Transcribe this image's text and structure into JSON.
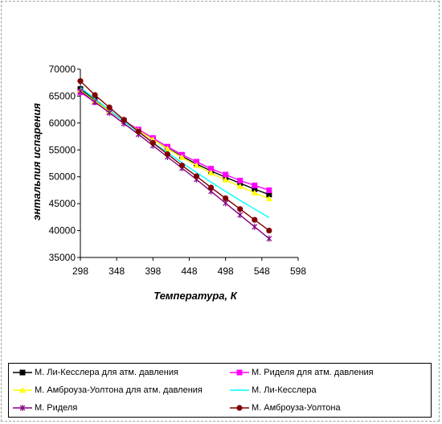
{
  "chart_data": {
    "type": "line",
    "xlabel": "Температура,  К",
    "ylabel": "энтальпия испарения",
    "xlim": [
      298,
      598
    ],
    "ylim": [
      35000,
      70000
    ],
    "x_ticks": [
      "298",
      "348",
      "398",
      "448",
      "498",
      "548",
      "598"
    ],
    "y_ticks": [
      "35000",
      "40000",
      "45000",
      "50000",
      "55000",
      "60000",
      "65000",
      "70000"
    ],
    "grid": false,
    "legend_position": "bottom",
    "series": [
      {
        "name": "М. Ли-Кесслера для атм. давления",
        "color": "#000000",
        "marker": "square",
        "x": [
          298,
          318,
          338,
          358,
          378,
          398,
          418,
          438,
          458,
          478,
          498,
          518,
          538,
          558
        ],
        "y": [
          66300,
          64300,
          62300,
          60400,
          58600,
          56900,
          55300,
          53800,
          52400,
          51100,
          49900,
          48800,
          47700,
          46700
        ]
      },
      {
        "name": "М. Риделя для атм. давления",
        "color": "#ff00ff",
        "marker": "square",
        "x": [
          298,
          318,
          338,
          358,
          378,
          398,
          418,
          438,
          458,
          478,
          498,
          518,
          538,
          558
        ],
        "y": [
          65700,
          63900,
          62100,
          60400,
          58800,
          57200,
          55600,
          54100,
          52800,
          51500,
          50400,
          49300,
          48400,
          47500
        ]
      },
      {
        "name": "М. Амброуза-Уолтона для атм. давления",
        "color": "#ffff00",
        "marker": "triangle",
        "x": [
          298,
          318,
          338,
          358,
          378,
          398,
          418,
          438,
          458,
          478,
          498,
          518,
          538,
          558
        ],
        "y": [
          66000,
          64100,
          62200,
          60400,
          58600,
          56900,
          55200,
          53600,
          52100,
          50700,
          49400,
          48200,
          47000,
          45900
        ]
      },
      {
        "name": "М. Ли-Кесслера",
        "color": "#00ffff",
        "marker": "none",
        "x": [
          298,
          318,
          338,
          358,
          378,
          398,
          418,
          438,
          458,
          478,
          498,
          518,
          538,
          558
        ],
        "y": [
          66600,
          64500,
          62400,
          60300,
          58300,
          56400,
          54500,
          52600,
          50800,
          49000,
          47300,
          45600,
          44000,
          42400
        ]
      },
      {
        "name": "М. Риделя",
        "color": "#800080",
        "marker": "x",
        "x": [
          298,
          318,
          338,
          358,
          378,
          398,
          418,
          438,
          458,
          478,
          498,
          518,
          538,
          558
        ],
        "y": [
          65900,
          63900,
          61900,
          59900,
          57900,
          55800,
          53700,
          51600,
          49500,
          47300,
          45100,
          42900,
          40700,
          38500
        ]
      },
      {
        "name": "М. Амброуза-Уолтона",
        "color": "#800000",
        "marker": "circle",
        "x": [
          298,
          318,
          338,
          358,
          378,
          398,
          418,
          438,
          458,
          478,
          498,
          518,
          538,
          558
        ],
        "y": [
          67800,
          65200,
          62900,
          60600,
          58400,
          56300,
          54200,
          52100,
          50100,
          48000,
          46000,
          44000,
          42000,
          40000
        ]
      }
    ]
  }
}
